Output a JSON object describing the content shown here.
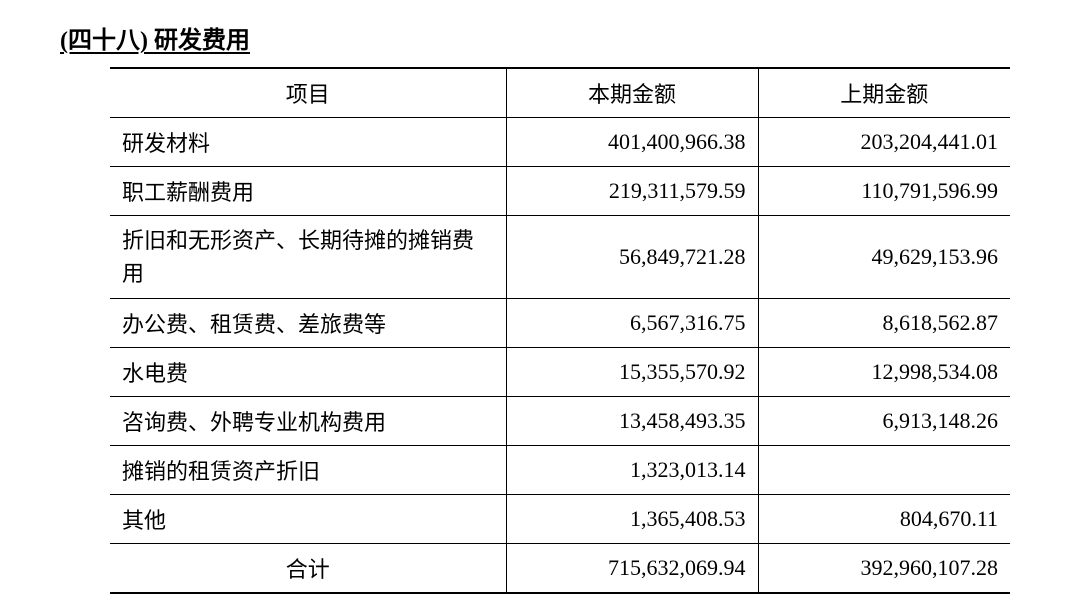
{
  "section": {
    "number": "(四十八)",
    "title": "研发费用"
  },
  "table": {
    "columns": [
      "项目",
      "本期金额",
      "上期金额"
    ],
    "rows": [
      {
        "item": "研发材料",
        "current": "401,400,966.38",
        "prior": "203,204,441.01"
      },
      {
        "item": "职工薪酬费用",
        "current": "219,311,579.59",
        "prior": "110,791,596.99"
      },
      {
        "item": "折旧和无形资产、长期待摊的摊销费用",
        "current": "56,849,721.28",
        "prior": "49,629,153.96",
        "multiline": true
      },
      {
        "item": "办公费、租赁费、差旅费等",
        "current": "6,567,316.75",
        "prior": "8,618,562.87"
      },
      {
        "item": "水电费",
        "current": "15,355,570.92",
        "prior": "12,998,534.08"
      },
      {
        "item": "咨询费、外聘专业机构费用",
        "current": "13,458,493.35",
        "prior": "6,913,148.26"
      },
      {
        "item": "摊销的租赁资产折旧",
        "current": "1,323,013.14",
        "prior": ""
      },
      {
        "item": "其他",
        "current": "1,365,408.53",
        "prior": "804,670.11"
      }
    ],
    "total": {
      "label": "合计",
      "current": "715,632,069.94",
      "prior": "392,960,107.28"
    }
  }
}
